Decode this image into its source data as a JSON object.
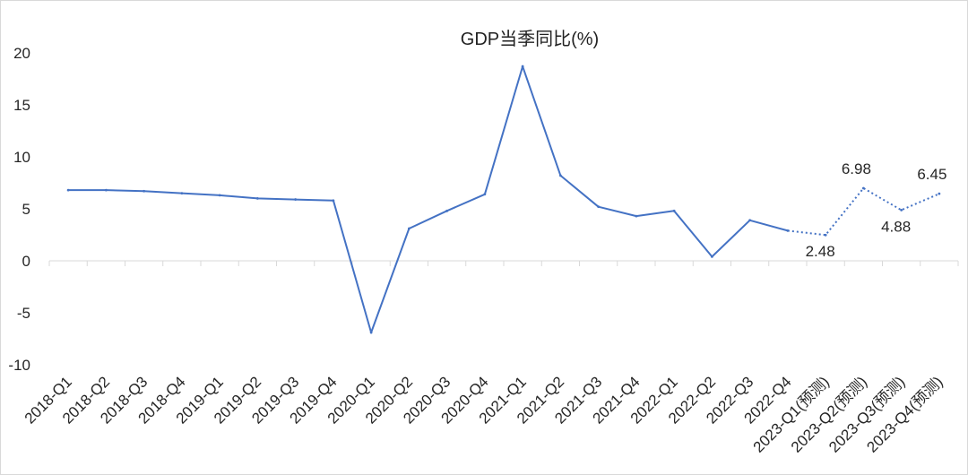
{
  "chart_data": {
    "type": "line",
    "title": "GDP当季同比(%)",
    "xlabel": "",
    "ylabel": "",
    "categories": [
      "2018-Q1",
      "2018-Q2",
      "2018-Q3",
      "2018-Q4",
      "2019-Q1",
      "2019-Q2",
      "2019-Q3",
      "2019-Q4",
      "2020-Q1",
      "2020-Q2",
      "2020-Q3",
      "2020-Q4",
      "2021-Q1",
      "2021-Q2",
      "2021-Q3",
      "2021-Q4",
      "2022-Q1",
      "2022-Q2",
      "2022-Q3",
      "2022-Q4",
      "2023-Q1(预测)",
      "2023-Q2(预测)",
      "2023-Q3(预测)",
      "2023-Q4(预测)"
    ],
    "series": [
      {
        "values": [
          6.8,
          6.8,
          6.7,
          6.5,
          6.3,
          6.0,
          5.9,
          5.8,
          -6.9,
          3.1,
          4.8,
          6.4,
          18.7,
          8.2,
          5.2,
          4.3,
          4.8,
          0.4,
          3.9,
          2.9,
          null,
          null,
          null,
          null
        ],
        "line_style": "solid",
        "color": "#4472C4"
      },
      {
        "values": [
          null,
          null,
          null,
          null,
          null,
          null,
          null,
          null,
          null,
          null,
          null,
          null,
          null,
          null,
          null,
          null,
          null,
          null,
          null,
          2.9,
          2.48,
          6.98,
          4.88,
          6.45
        ],
        "line_style": "dotted",
        "color": "#4472C4"
      }
    ],
    "data_labels": [
      {
        "category": "2023-Q1(预测)",
        "text": "2.48",
        "position": "below"
      },
      {
        "category": "2023-Q2(预测)",
        "text": "6.98",
        "position": "above"
      },
      {
        "category": "2023-Q3(预测)",
        "text": "4.88",
        "position": "below"
      },
      {
        "category": "2023-Q4(预测)",
        "text": "6.45",
        "position": "above"
      }
    ],
    "ylim": [
      -10,
      20
    ],
    "y_ticks": [
      20,
      15,
      10,
      5,
      0,
      -5,
      -10
    ],
    "grid": false,
    "legend": "none",
    "axis_color": "#d9d9d9"
  }
}
